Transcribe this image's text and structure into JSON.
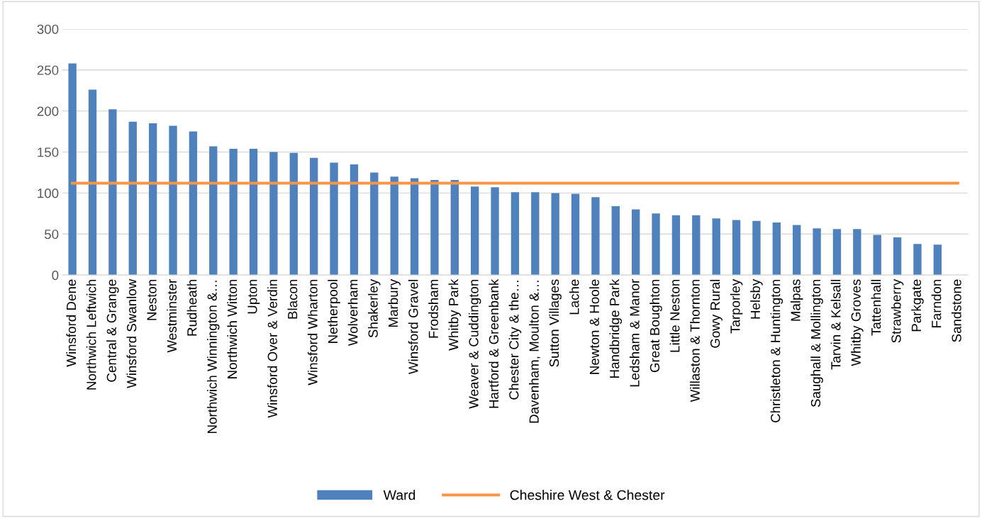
{
  "chart_data": {
    "type": "bar",
    "categories": [
      "Winsford Dene",
      "Northwich Leftwich",
      "Central & Grange",
      "Winsford Swanlow",
      "Neston",
      "Westminster",
      "Rudheath",
      "Northwich Winnington &…",
      "Northwich Witton",
      "Upton",
      "Winsford Over & Verdin",
      "Blacon",
      "Winsford Wharton",
      "Netherpool",
      "Wolverham",
      "Shakerley",
      "Marbury",
      "Winsford Gravel",
      "Frodsham",
      "Whitby Park",
      "Weaver & Cuddington",
      "Hartford & Greenbank",
      "Chester City & the…",
      "Davenham, Moulton &…",
      "Sutton Villages",
      "Lache",
      "Newton & Hoole",
      "Handbridge Park",
      "Ledsham & Manor",
      "Great Boughton",
      "Little Neston",
      "Willaston & Thornton",
      "Gowy Rural",
      "Tarporley",
      "Helsby",
      "Christleton & Huntington",
      "Malpas",
      "Saughall & Mollington",
      "Tarvin & Kelsall",
      "Whitby Groves",
      "Tattenhall",
      "Strawberry",
      "Parkgate",
      "Farndon",
      "Sandstone"
    ],
    "series": [
      {
        "name": "Ward",
        "color": "#4f81bd",
        "values": [
          258,
          226,
          202,
          187,
          185,
          182,
          175,
          157,
          154,
          154,
          150,
          149,
          143,
          137,
          135,
          125,
          120,
          118,
          116,
          116,
          108,
          107,
          101,
          101,
          100,
          99,
          95,
          84,
          80,
          75,
          73,
          73,
          69,
          67,
          66,
          64,
          61,
          57,
          56,
          56,
          49,
          46,
          38,
          37,
          0
        ]
      },
      {
        "name": "Cheshire West & Chester",
        "type": "line",
        "color": "#f79646",
        "values": [
          112,
          112,
          112,
          112,
          112,
          112,
          112,
          112,
          112,
          112,
          112,
          112,
          112,
          112,
          112,
          112,
          112,
          112,
          112,
          112,
          112,
          112,
          112,
          112,
          112,
          112,
          112,
          112,
          112,
          112,
          112,
          112,
          112,
          112,
          112,
          112,
          112,
          112,
          112,
          112,
          112,
          112,
          112,
          112,
          112
        ]
      }
    ],
    "ylim": [
      0,
      300
    ],
    "yticks": [
      0,
      50,
      100,
      150,
      200,
      250,
      300
    ],
    "grid": "y",
    "legend": "bottom"
  }
}
